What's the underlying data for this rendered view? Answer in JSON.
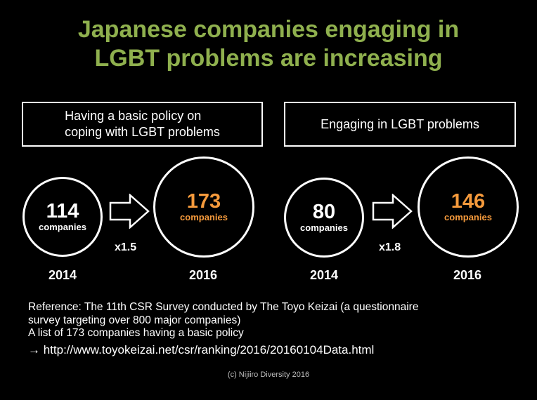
{
  "title": {
    "line1": "Japanese companies engaging in",
    "line2": "LGBT problems are increasing"
  },
  "left": {
    "heading_line1": "Having a basic policy on",
    "heading_line2": "coping with LGBT problems",
    "before": {
      "value": "114",
      "unit": "companies",
      "year": "2014"
    },
    "after": {
      "value": "173",
      "unit": "companies",
      "year": "2016"
    },
    "multiplier": "x1.5"
  },
  "right": {
    "heading": "Engaging in LGBT problems",
    "before": {
      "value": "80",
      "unit": "companies",
      "year": "2014"
    },
    "after": {
      "value": "146",
      "unit": "companies",
      "year": "2016"
    },
    "multiplier": "x1.8"
  },
  "reference": {
    "line1": "Reference: The 11th CSR Survey conducted by The Toyo Keizai (a questionnaire",
    "line2": "survey targeting over 800 major companies)",
    "line3": "A list of 173 companies having a basic policy",
    "link": "→ http://www.toyokeizai.net/csr/ranking/2016/20160104Data.html"
  },
  "credit": "(c) Nijiiro Diversity 2016",
  "colors": {
    "title": "#8fb04e",
    "highlight": "#f59a3c",
    "background": "#000000"
  }
}
